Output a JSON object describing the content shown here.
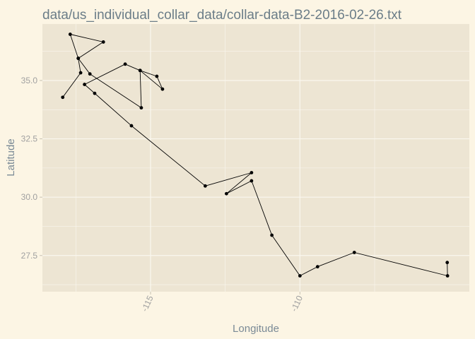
{
  "chart_data": {
    "type": "scatter",
    "title": "data/us_individual_collar_data/collar-data-B2-2016-02-26.txt",
    "xlabel": "Longitude",
    "ylabel": "Latitude",
    "xlim": [
      -118.62,
      -104.33
    ],
    "ylim": [
      25.95,
      37.42
    ],
    "x_ticks": [
      -115,
      -110
    ],
    "x_tick_labels": [
      "-115",
      "-110"
    ],
    "y_ticks": [
      27.5,
      30.0,
      32.5,
      35.0
    ],
    "y_tick_labels": [
      "27.5",
      "30.0",
      "32.5",
      "35.0"
    ],
    "grid": true,
    "connected_path": true,
    "points": [
      {
        "x": -117.94,
        "y": 34.28
      },
      {
        "x": -117.34,
        "y": 35.33
      },
      {
        "x": -117.42,
        "y": 35.95
      },
      {
        "x": -117.69,
        "y": 36.98
      },
      {
        "x": -116.58,
        "y": 36.65
      },
      {
        "x": -117.42,
        "y": 35.95
      },
      {
        "x": -117.03,
        "y": 35.28
      },
      {
        "x": -115.31,
        "y": 33.83
      },
      {
        "x": -115.35,
        "y": 35.43
      },
      {
        "x": -114.79,
        "y": 35.18
      },
      {
        "x": -114.6,
        "y": 34.63
      },
      {
        "x": -115.35,
        "y": 35.43
      },
      {
        "x": -115.85,
        "y": 35.7
      },
      {
        "x": -117.21,
        "y": 34.83
      },
      {
        "x": -116.87,
        "y": 34.45
      },
      {
        "x": -115.64,
        "y": 33.06
      },
      {
        "x": -113.17,
        "y": 30.48
      },
      {
        "x": -111.62,
        "y": 31.05
      },
      {
        "x": -112.46,
        "y": 30.15
      },
      {
        "x": -111.62,
        "y": 30.7
      },
      {
        "x": -110.94,
        "y": 28.37
      },
      {
        "x": -110.0,
        "y": 26.63
      },
      {
        "x": -109.41,
        "y": 27.02
      },
      {
        "x": -108.18,
        "y": 27.63
      },
      {
        "x": -105.06,
        "y": 26.63
      },
      {
        "x": -105.07,
        "y": 27.2
      }
    ],
    "colors": {
      "panel_background": "#ede5d3",
      "page_background": "#fcf5e4",
      "grid": "#faf7ef",
      "points": "#000000",
      "path": "#000000"
    }
  }
}
